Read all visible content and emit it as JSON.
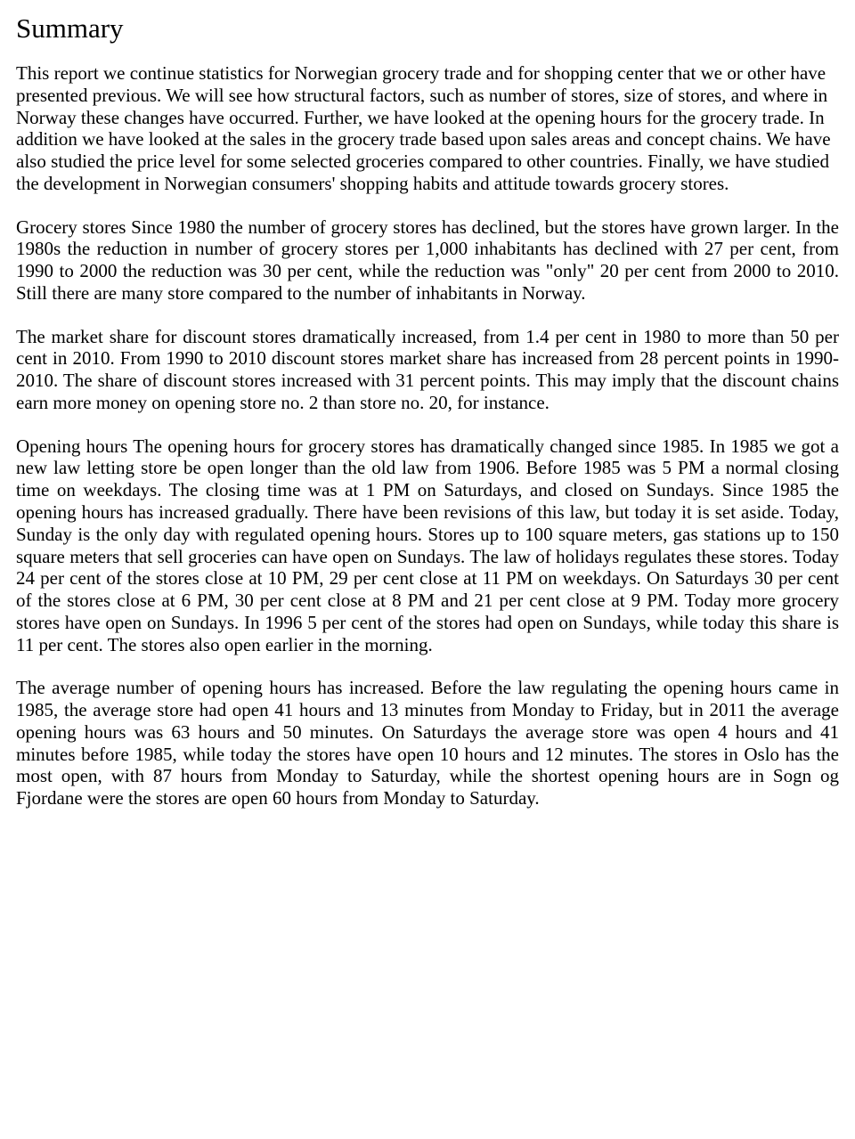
{
  "title": "Summary",
  "paragraphs": {
    "p1": "This report we continue statistics for Norwegian grocery trade and for shopping center that we or other have presented previous. We will see how structural factors, such as number of stores, size of stores, and where in Norway these changes have occurred. Further, we have looked at the opening hours for the grocery trade. In addition we have looked at the sales in the grocery trade based upon sales areas and concept chains. We have also studied the price level for some selected groceries compared to other countries. Finally, we have studied the development in Norwegian consumers' shopping habits and attitude towards grocery stores.",
    "p2": "Grocery stores\nSince 1980 the number of grocery stores has declined, but the stores have grown larger. In the 1980s the reduction in number of grocery stores per 1,000 inhabitants has declined with 27 per cent, from 1990 to 2000 the reduction was 30 per cent, while the reduction was \"only\" 20 per cent from 2000 to 2010. Still there are many store compared to the number of inhabitants in Norway.",
    "p3": "The market share for discount stores dramatically increased, from 1.4 per cent in 1980 to more than 50 per cent in 2010. From 1990 to 2010 discount stores market share has increased from 28 percent points in 1990-2010. The share of discount stores increased with 31 percent points. This may imply that the discount chains earn more money on opening store no. 2 than store no. 20, for instance.",
    "p4": "Opening hours\nThe opening hours for grocery stores has dramatically changed since 1985. In 1985 we got a new law letting store be open longer than the old law from 1906. Before 1985 was 5 PM a normal closing time on weekdays. The closing time was at 1 PM on Saturdays, and closed on Sundays. Since 1985 the opening hours has increased gradually. There have been revisions of this law, but today it is set aside. Today, Sunday is the only day with regulated opening hours. Stores up to 100 square meters, gas stations up to 150 square meters that sell groceries can have open on Sundays. The law of holidays regulates these stores. Today 24 per cent of the stores close at 10 PM, 29 per cent close at 11 PM on weekdays. On Saturdays 30 per cent of the stores close at 6 PM, 30 per cent close at 8 PM and 21 per cent close at 9 PM. Today more grocery stores have open on Sundays. In 1996 5 per cent of the stores had open on Sundays, while today this share is 11 per cent. The stores also open earlier in the morning.",
    "p5": "The average number of opening hours has increased. Before the law regulating the opening hours came in 1985, the average store had open 41 hours and 13 minutes from Monday to Friday, but in 2011 the average opening hours was 63 hours and 50 minutes. On Saturdays the average store was open 4 hours and 41 minutes before 1985, while today the stores have open 10 hours and 12 minutes. The stores in Oslo has the most open, with 87 hours from Monday to Saturday, while the shortest opening hours are in Sogn og Fjordane were the stores are open 60 hours from Monday to Saturday."
  }
}
